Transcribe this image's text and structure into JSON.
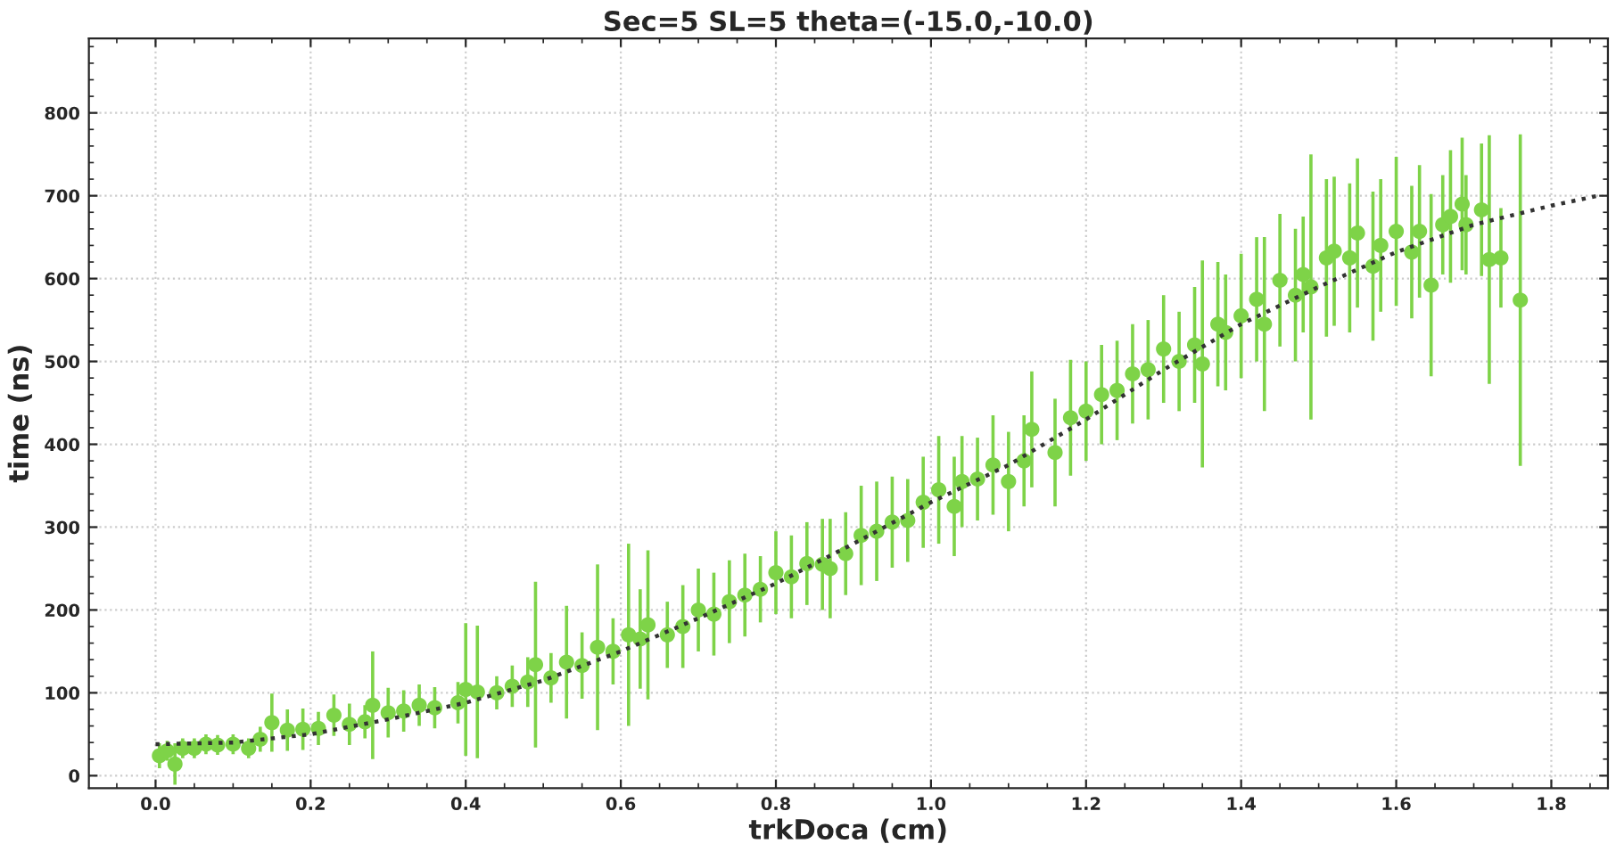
{
  "chart_data": {
    "type": "scatter",
    "title": "Sec=5 SL=5 theta=(-15.0,-10.0)",
    "xlabel": "trkDoca (cm)",
    "ylabel": "time (ns)",
    "xlim": [
      -0.086,
      1.873
    ],
    "ylim": [
      -15,
      890
    ],
    "xticks": [
      {
        "value": 0,
        "label": "0.0"
      },
      {
        "value": 0.2,
        "label": "0.2"
      },
      {
        "value": 0.4,
        "label": "0.4"
      },
      {
        "value": 0.6,
        "label": "0.6"
      },
      {
        "value": 0.8,
        "label": "0.8"
      },
      {
        "value": 1.0,
        "label": "1.0"
      },
      {
        "value": 1.2,
        "label": "1.2"
      },
      {
        "value": 1.4,
        "label": "1.4"
      },
      {
        "value": 1.6,
        "label": "1.6"
      },
      {
        "value": 1.8,
        "label": "1.8"
      }
    ],
    "yticks": [
      0,
      100,
      200,
      300,
      400,
      500,
      600,
      700,
      800
    ],
    "grid": true,
    "series": [
      {
        "color": "#7ed348",
        "marker": "circle",
        "x": [
          0.005,
          0.015,
          0.025,
          0.035,
          0.05,
          0.065,
          0.08,
          0.1,
          0.12,
          0.135,
          0.15,
          0.17,
          0.19,
          0.21,
          0.23,
          0.25,
          0.27,
          0.28,
          0.3,
          0.32,
          0.34,
          0.36,
          0.39,
          0.4,
          0.415,
          0.44,
          0.46,
          0.48,
          0.49,
          0.51,
          0.53,
          0.55,
          0.57,
          0.59,
          0.61,
          0.625,
          0.635,
          0.66,
          0.68,
          0.7,
          0.72,
          0.74,
          0.76,
          0.78,
          0.8,
          0.82,
          0.84,
          0.86,
          0.87,
          0.89,
          0.91,
          0.93,
          0.95,
          0.97,
          0.99,
          1.01,
          1.03,
          1.04,
          1.06,
          1.08,
          1.1,
          1.12,
          1.13,
          1.16,
          1.18,
          1.2,
          1.22,
          1.24,
          1.26,
          1.28,
          1.3,
          1.32,
          1.34,
          1.35,
          1.37,
          1.38,
          1.4,
          1.42,
          1.43,
          1.45,
          1.47,
          1.48,
          1.49,
          1.51,
          1.52,
          1.54,
          1.55,
          1.57,
          1.58,
          1.6,
          1.62,
          1.63,
          1.645,
          1.66,
          1.67,
          1.685,
          1.69,
          1.71,
          1.72,
          1.735,
          1.76
        ],
        "values": [
          24,
          30,
          14,
          33,
          33,
          38,
          37,
          38,
          33,
          44,
          64,
          55,
          56,
          57,
          73,
          62,
          65,
          85,
          76,
          78,
          85,
          82,
          88,
          104,
          101,
          100,
          108,
          113,
          134,
          118,
          137,
          133,
          155,
          150,
          170,
          165,
          182,
          170,
          180,
          200,
          195,
          210,
          218,
          225,
          245,
          240,
          256,
          255,
          250,
          268,
          290,
          295,
          306,
          308,
          330,
          345,
          325,
          355,
          358,
          375,
          355,
          380,
          418,
          390,
          432,
          440,
          460,
          465,
          485,
          490,
          515,
          500,
          520,
          497,
          545,
          535,
          555,
          575,
          545,
          598,
          580,
          605,
          590,
          625,
          633,
          625,
          655,
          615,
          640,
          657,
          632,
          657,
          592,
          665,
          675,
          690,
          665,
          683,
          623,
          625,
          574
        ],
        "errors": [
          15,
          12,
          25,
          12,
          12,
          12,
          12,
          12,
          12,
          15,
          35,
          25,
          25,
          20,
          25,
          25,
          20,
          65,
          30,
          25,
          25,
          25,
          25,
          80,
          80,
          20,
          25,
          30,
          100,
          30,
          68,
          40,
          100,
          40,
          110,
          60,
          90,
          40,
          50,
          50,
          50,
          50,
          50,
          40,
          50,
          50,
          50,
          55,
          60,
          50,
          60,
          60,
          55,
          50,
          55,
          65,
          60,
          55,
          50,
          60,
          60,
          55,
          70,
          65,
          70,
          60,
          60,
          60,
          60,
          60,
          65,
          60,
          70,
          125,
          75,
          70,
          75,
          75,
          105,
          80,
          80,
          70,
          160,
          95,
          90,
          90,
          90,
          90,
          80,
          90,
          80,
          80,
          110,
          60,
          80,
          80,
          60,
          80,
          150,
          60,
          200
        ]
      },
      {
        "type": "line",
        "color": "#333333",
        "line_style": "dotted",
        "marker": "none",
        "x": [
          0,
          0.1,
          0.2,
          0.3,
          0.4,
          0.5,
          0.6,
          0.7,
          0.8,
          0.9,
          1.0,
          1.1,
          1.2,
          1.3,
          1.4,
          1.5,
          1.6,
          1.7,
          1.8,
          1.86
        ],
        "values": [
          38,
          40,
          50,
          68,
          88,
          115,
          150,
          190,
          232,
          280,
          330,
          375,
          430,
          490,
          545,
          590,
          632,
          665,
          688,
          700
        ]
      }
    ]
  }
}
